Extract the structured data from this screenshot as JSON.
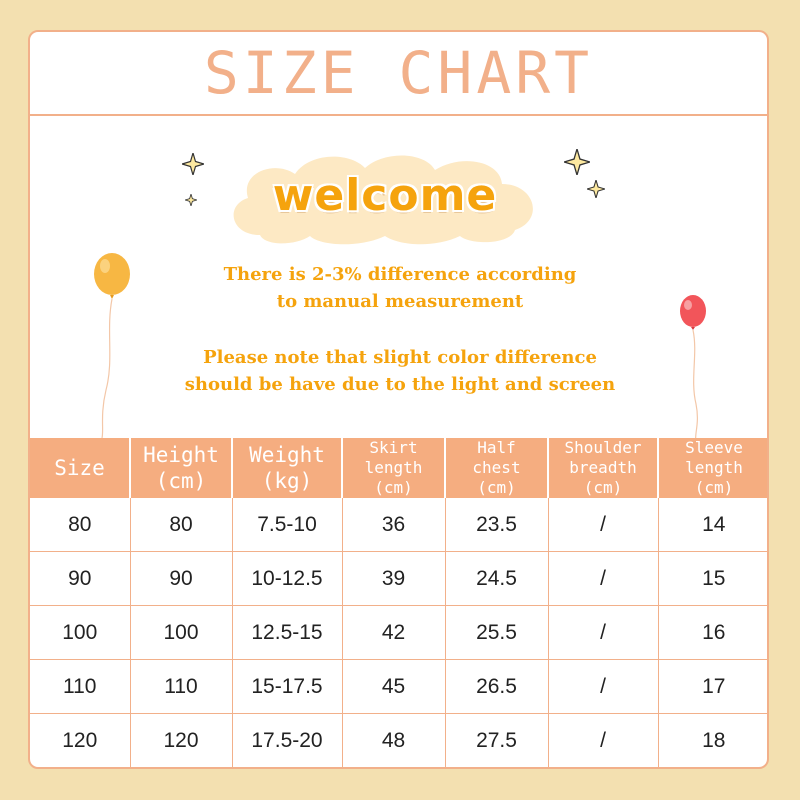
{
  "title": "SIZE CHART",
  "welcome": "welcome",
  "notes": [
    "There is 2-3% difference according",
    "to manual measurement",
    "Please note that slight color difference",
    "should be have due to the light and screen"
  ],
  "colors": {
    "background": "#f3e0b0",
    "accent": "#f2b08a",
    "header_fill": "#f5ad80",
    "text_orange": "#f5a30d"
  },
  "icons": [
    "sparkle-icon",
    "yellow-balloon-icon",
    "red-balloon-icon",
    "cloud-shape"
  ],
  "table": {
    "headers": [
      [
        "Size"
      ],
      [
        "Height",
        "(cm)"
      ],
      [
        "Weight",
        "(kg)"
      ],
      [
        "Skirt",
        "length",
        "(cm)"
      ],
      [
        "Half",
        "chest",
        "(cm)"
      ],
      [
        "Shoulder",
        "breadth",
        "(cm)"
      ],
      [
        "Sleeve",
        "length",
        "(cm)"
      ]
    ],
    "rows": [
      [
        "80",
        "80",
        "7.5-10",
        "36",
        "23.5",
        "/",
        "14"
      ],
      [
        "90",
        "90",
        "10-12.5",
        "39",
        "24.5",
        "/",
        "15"
      ],
      [
        "100",
        "100",
        "12.5-15",
        "42",
        "25.5",
        "/",
        "16"
      ],
      [
        "110",
        "110",
        "15-17.5",
        "45",
        "26.5",
        "/",
        "17"
      ],
      [
        "120",
        "120",
        "17.5-20",
        "48",
        "27.5",
        "/",
        "18"
      ]
    ]
  }
}
